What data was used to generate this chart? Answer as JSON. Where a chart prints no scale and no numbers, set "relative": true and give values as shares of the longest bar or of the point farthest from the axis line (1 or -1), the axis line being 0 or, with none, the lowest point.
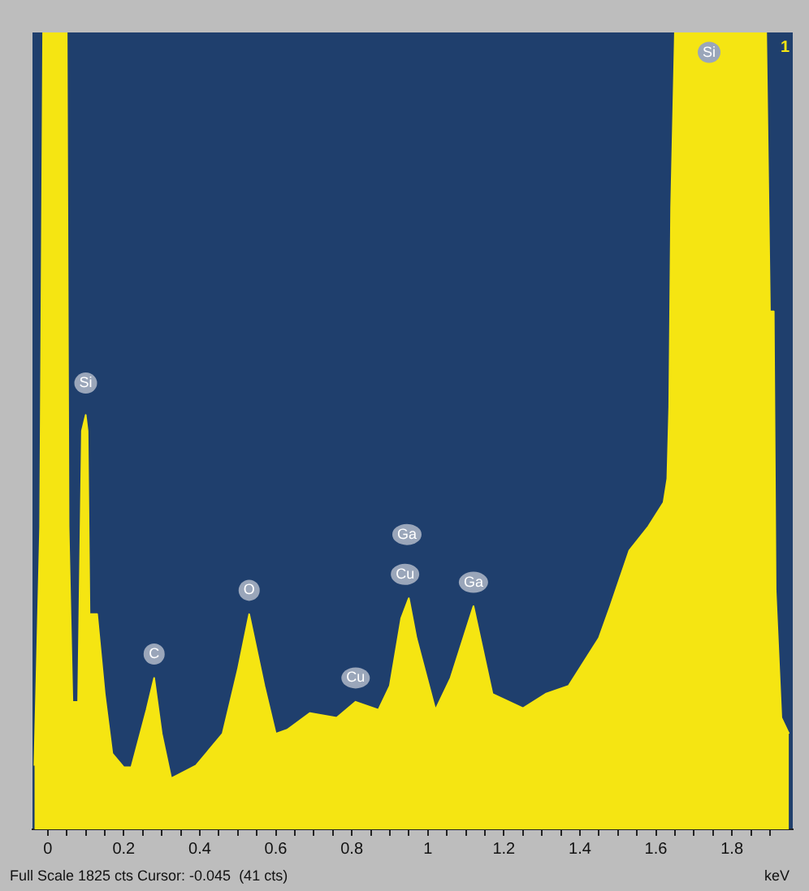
{
  "chart_data": {
    "type": "area",
    "relative": true,
    "xlabel": "keV",
    "x": [
      -0.035,
      -0.02,
      -0.012,
      0.0,
      0.05,
      0.055,
      0.065,
      0.08,
      0.09,
      0.1,
      0.105,
      0.11,
      0.13,
      0.15,
      0.17,
      0.2,
      0.22,
      0.26,
      0.28,
      0.3,
      0.325,
      0.39,
      0.46,
      0.5,
      0.53,
      0.57,
      0.6,
      0.63,
      0.69,
      0.76,
      0.81,
      0.87,
      0.9,
      0.93,
      0.95,
      0.97,
      1.02,
      1.06,
      1.12,
      1.17,
      1.25,
      1.31,
      1.37,
      1.41,
      1.45,
      1.48,
      1.53,
      1.58,
      1.62,
      1.63,
      1.635,
      1.64,
      1.65,
      1.75,
      1.89,
      1.9,
      1.91,
      1.915,
      1.93,
      1.95
    ],
    "series": [
      {
        "color": "#f5e512",
        "values": [
          0.08,
          0.38,
          1.0,
          1.0,
          1.0,
          0.38,
          0.16,
          0.16,
          0.5,
          0.52,
          0.5,
          0.27,
          0.27,
          0.17,
          0.095,
          0.078,
          0.078,
          0.15,
          0.19,
          0.12,
          0.064,
          0.08,
          0.12,
          0.2,
          0.27,
          0.18,
          0.12,
          0.125,
          0.146,
          0.14,
          0.16,
          0.15,
          0.18,
          0.265,
          0.29,
          0.24,
          0.15,
          0.19,
          0.28,
          0.17,
          0.152,
          0.17,
          0.18,
          0.21,
          0.24,
          0.28,
          0.35,
          0.38,
          0.41,
          0.44,
          0.53,
          0.78,
          1.0,
          1.0,
          1.0,
          0.65,
          0.65,
          0.3,
          0.14,
          0.12
        ]
      }
    ],
    "xlim": [
      -0.04,
      1.96
    ],
    "xticks": [
      0,
      {
        "value": 0.05,
        "label": null
      },
      {
        "value": 0.1,
        "label": null
      },
      {
        "value": 0.15,
        "label": null
      },
      0.2,
      {
        "value": 0.25,
        "label": null
      },
      {
        "value": 0.3,
        "label": null
      },
      {
        "value": 0.35,
        "label": null
      },
      0.4,
      {
        "value": 0.45,
        "label": null
      },
      {
        "value": 0.5,
        "label": null
      },
      {
        "value": 0.55,
        "label": null
      },
      0.6,
      {
        "value": 0.65,
        "label": null
      },
      {
        "value": 0.7,
        "label": null
      },
      {
        "value": 0.75,
        "label": null
      },
      0.8,
      {
        "value": 0.85,
        "label": null
      },
      {
        "value": 0.9,
        "label": null
      },
      {
        "value": 0.95,
        "label": null
      },
      1,
      {
        "value": 1.05,
        "label": null
      },
      {
        "value": 1.1,
        "label": null
      },
      {
        "value": 1.15,
        "label": null
      },
      1.2,
      {
        "value": 1.25,
        "label": null
      },
      {
        "value": 1.3,
        "label": null
      },
      {
        "value": 1.35,
        "label": null
      },
      1.4,
      {
        "value": 1.45,
        "label": null
      },
      {
        "value": 1.5,
        "label": null
      },
      {
        "value": 1.55,
        "label": null
      },
      1.6,
      {
        "value": 1.65,
        "label": null
      },
      {
        "value": 1.7,
        "label": null
      },
      {
        "value": 1.75,
        "label": null
      },
      1.8,
      {
        "value": 1.85,
        "label": null
      },
      {
        "value": 1.9,
        "label": null
      }
    ],
    "grid": false,
    "legend": false,
    "annotations": [
      {
        "text": "Si",
        "x": 0.1,
        "y": 0.56
      },
      {
        "text": "C",
        "x": 0.28,
        "y": 0.22
      },
      {
        "text": "O",
        "x": 0.53,
        "y": 0.3
      },
      {
        "text": "Cu",
        "x": 0.81,
        "y": 0.19
      },
      {
        "text": "Cu",
        "x": 0.94,
        "y": 0.32
      },
      {
        "text": "Ga",
        "x": 0.945,
        "y": 0.37
      },
      {
        "text": "Ga",
        "x": 1.12,
        "y": 0.31
      },
      {
        "text": "Si",
        "x": 1.74,
        "y": 0.975
      },
      "1",
      "Full Scale 1825 cts Cursor: -0.045  (41 cts)"
    ]
  }
}
